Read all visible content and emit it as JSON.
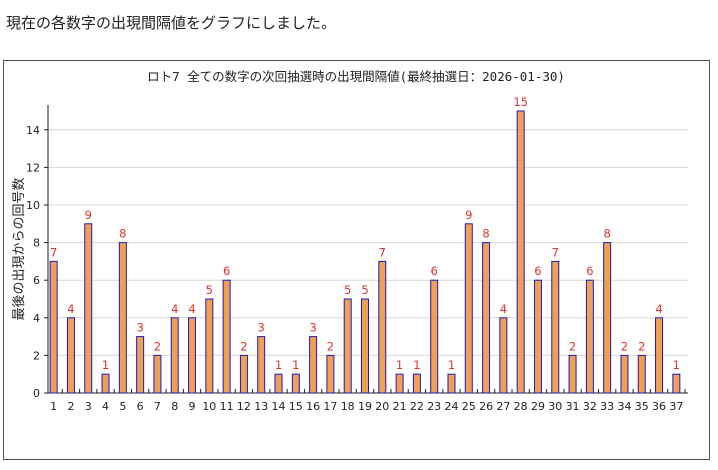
{
  "page": {
    "intro_text": "現在の各数字の出現間隔値をグラフにしました。"
  },
  "colors": {
    "bar_fill": "#f0a050",
    "bar_stroke": "#1a1ac8",
    "value_label": "#e0332b",
    "grid": "#d8d8d8"
  },
  "chart_data": {
    "type": "bar",
    "title": "ロト7 全ての数字の次回抽選時の出現間隔値(最終抽選日：2026-01-30)",
    "xlabel": "",
    "ylabel": "最後の出現からの回号数",
    "ylim": [
      0,
      15
    ],
    "yticks": [
      0,
      2,
      4,
      6,
      8,
      10,
      12,
      14
    ],
    "grid": true,
    "legend": "none",
    "categories": [
      "1",
      "2",
      "3",
      "4",
      "5",
      "6",
      "7",
      "8",
      "9",
      "10",
      "11",
      "12",
      "13",
      "14",
      "15",
      "16",
      "17",
      "18",
      "19",
      "20",
      "21",
      "22",
      "23",
      "24",
      "25",
      "26",
      "27",
      "28",
      "29",
      "30",
      "31",
      "32",
      "33",
      "34",
      "35",
      "36",
      "37"
    ],
    "values": [
      7,
      4,
      9,
      1,
      8,
      3,
      2,
      4,
      4,
      5,
      6,
      2,
      3,
      1,
      1,
      3,
      2,
      5,
      5,
      7,
      1,
      1,
      6,
      1,
      9,
      8,
      4,
      15,
      6,
      7,
      2,
      6,
      8,
      2,
      2,
      4,
      1
    ]
  }
}
